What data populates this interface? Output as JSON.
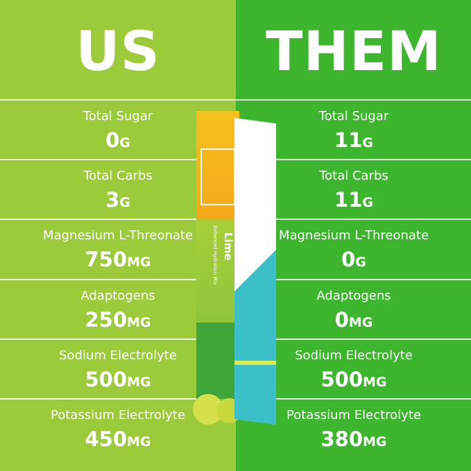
{
  "us": {
    "title": "US",
    "rows": [
      {
        "label": "Total Sugar",
        "amount": "0",
        "unit": "G"
      },
      {
        "label": "Total Carbs",
        "amount": "3",
        "unit": "G"
      },
      {
        "label": "Magnesium L-Threonate",
        "amount": "750",
        "unit": "MG"
      },
      {
        "label": "Adaptogens",
        "amount": "250",
        "unit": "MG"
      },
      {
        "label": "Sodium Electrolyte",
        "amount": "500",
        "unit": "MG"
      },
      {
        "label": "Potassium Electrolyte",
        "amount": "450",
        "unit": "MG"
      }
    ]
  },
  "them": {
    "title": "THEM",
    "rows": [
      {
        "label": "Total Sugar",
        "amount": "11",
        "unit": "G"
      },
      {
        "label": "Total Carbs",
        "amount": "11",
        "unit": "G"
      },
      {
        "label": "Magnesium L-Threonate",
        "amount": "0",
        "unit": "G"
      },
      {
        "label": "Adaptogens",
        "amount": "0",
        "unit": "MG"
      },
      {
        "label": "Sodium Electrolyte",
        "amount": "500",
        "unit": "MG"
      },
      {
        "label": "Potassium Electrolyte",
        "amount": "380",
        "unit": "MG"
      }
    ]
  },
  "packet": {
    "flavor": "Lime",
    "subtitle": "Enhanced Hydration Mix"
  }
}
